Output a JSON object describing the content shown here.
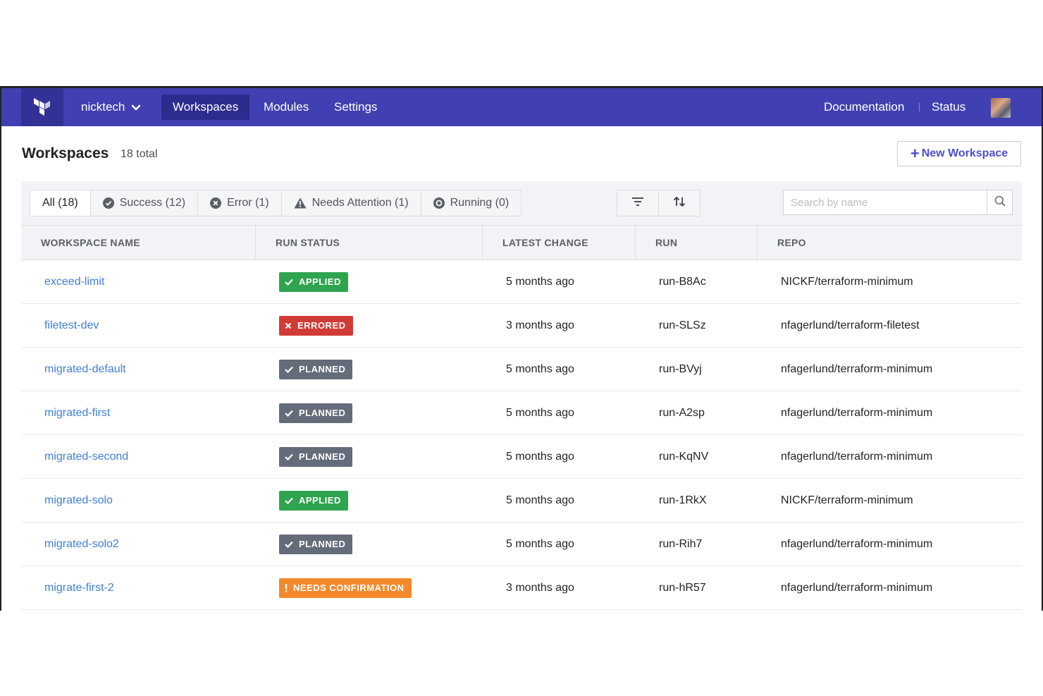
{
  "nav": {
    "org": "nicktech",
    "tabs": [
      {
        "label": "Workspaces",
        "active": true
      },
      {
        "label": "Modules",
        "active": false
      },
      {
        "label": "Settings",
        "active": false
      }
    ],
    "documentation": "Documentation",
    "status": "Status"
  },
  "header": {
    "title": "Workspaces",
    "count": "18 total",
    "new_button": "New Workspace"
  },
  "filters": [
    {
      "label": "All (18)",
      "icon": "",
      "active": true
    },
    {
      "label": "Success (12)",
      "icon": "check-circle-icon",
      "active": false
    },
    {
      "label": "Error (1)",
      "icon": "x-circle-icon",
      "active": false
    },
    {
      "label": "Needs Attention (1)",
      "icon": "warning-icon",
      "active": false
    },
    {
      "label": "Running (0)",
      "icon": "running-icon",
      "active": false
    }
  ],
  "search": {
    "placeholder": "Search by name"
  },
  "table": {
    "columns": [
      "WORKSPACE NAME",
      "RUN STATUS",
      "LATEST CHANGE",
      "RUN",
      "REPO"
    ],
    "rows": [
      {
        "name": "exceed-limit",
        "status": "APPLIED",
        "status_kind": "applied",
        "change": "5 months ago",
        "run": "run-B8Ac",
        "repo": "NICKF/terraform-minimum"
      },
      {
        "name": "filetest-dev",
        "status": "ERRORED",
        "status_kind": "errored",
        "change": "3 months ago",
        "run": "run-SLSz",
        "repo": "nfagerlund/terraform-filetest"
      },
      {
        "name": "migrated-default",
        "status": "PLANNED",
        "status_kind": "planned",
        "change": "5 months ago",
        "run": "run-BVyj",
        "repo": "nfagerlund/terraform-minimum"
      },
      {
        "name": "migrated-first",
        "status": "PLANNED",
        "status_kind": "planned",
        "change": "5 months ago",
        "run": "run-A2sp",
        "repo": "nfagerlund/terraform-minimum"
      },
      {
        "name": "migrated-second",
        "status": "PLANNED",
        "status_kind": "planned",
        "change": "5 months ago",
        "run": "run-KqNV",
        "repo": "nfagerlund/terraform-minimum"
      },
      {
        "name": "migrated-solo",
        "status": "APPLIED",
        "status_kind": "applied",
        "change": "5 months ago",
        "run": "run-1RkX",
        "repo": "NICKF/terraform-minimum"
      },
      {
        "name": "migrated-solo2",
        "status": "PLANNED",
        "status_kind": "planned",
        "change": "5 months ago",
        "run": "run-Rih7",
        "repo": "nfagerlund/terraform-minimum"
      },
      {
        "name": "migrate-first-2",
        "status": "NEEDS CONFIRMATION",
        "status_kind": "needs",
        "change": "3 months ago",
        "run": "run-hR57",
        "repo": "nfagerlund/terraform-minimum"
      }
    ]
  },
  "colors": {
    "nav": "#4040b2",
    "link": "#3f7fd6",
    "applied": "#2ea44f",
    "errored": "#d23b35",
    "planned": "#646b79",
    "needs_confirmation": "#f4892c"
  }
}
